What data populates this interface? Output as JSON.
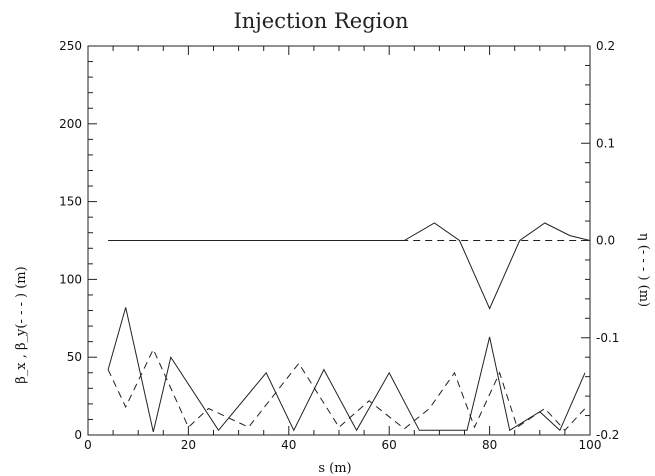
{
  "chart_data": {
    "type": "line",
    "title": "Injection Region",
    "xlabel": "s  (m)",
    "ylabel_left": "β_x , β_y(- - - ) (m)",
    "ylabel_right": "η (- - - ) (m)",
    "xlim": [
      0,
      100
    ],
    "ylim_left": [
      0,
      250
    ],
    "ylim_right": [
      -0.2,
      0.2
    ],
    "grid": false,
    "x_ticks": [
      "0",
      "20",
      "40",
      "60",
      "80",
      "100"
    ],
    "y_ticks_left": [
      "0",
      "50",
      "100",
      "150",
      "200",
      "250"
    ],
    "y_ticks_right": [
      "-0.2",
      "-0.1",
      "0.0",
      "0.1",
      "0.2"
    ],
    "series": [
      {
        "axis": "left",
        "style": "solid",
        "x": [
          4,
          7.5,
          13,
          16.5,
          26,
          35.5,
          41,
          47,
          53.5,
          60,
          66,
          75.5,
          80,
          84,
          90,
          94,
          99
        ],
        "y": [
          42,
          82,
          2,
          50,
          3,
          40,
          3,
          42,
          3,
          40,
          3,
          3,
          63,
          3,
          15,
          3,
          40
        ]
      },
      {
        "axis": "left",
        "style": "dashed",
        "x": [
          4,
          7.5,
          13,
          20,
          24,
          32,
          42,
          50,
          56,
          63,
          68,
          73,
          77,
          82,
          85.5,
          91,
          95,
          99
        ],
        "y": [
          42,
          18,
          55,
          5,
          17,
          5,
          46,
          5,
          22,
          4,
          17,
          40,
          5,
          40,
          5,
          17,
          3,
          17
        ]
      },
      {
        "axis": "right",
        "style": "solid",
        "x": [
          4,
          60,
          63,
          69,
          74,
          80,
          86,
          91,
          96,
          100
        ],
        "y": [
          0.0,
          0.0,
          0.0,
          0.018,
          0.0,
          -0.07,
          0.0,
          0.018,
          0.005,
          0.0
        ]
      },
      {
        "axis": "right",
        "style": "dashed",
        "x": [
          60,
          100
        ],
        "y": [
          0.0,
          0.0
        ]
      }
    ]
  }
}
